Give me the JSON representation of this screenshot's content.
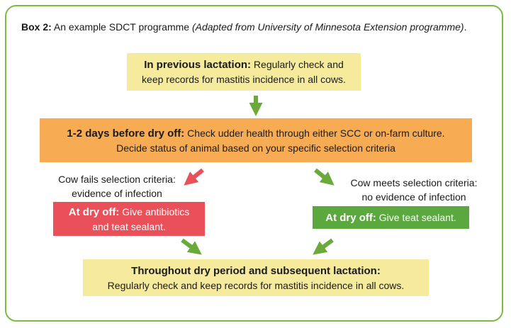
{
  "caption": {
    "label": "Box 2:",
    "text": " An example SDCT programme ",
    "source": "(Adapted from University of  Minnesota Extension programme)",
    "end": "."
  },
  "boxes": {
    "previous": {
      "title": "In previous lactation:",
      "text1": " Regularly check and",
      "text2": "keep records for mastitis incidence in all cows."
    },
    "before_dry_off": {
      "title": "1-2 days before dry off:",
      "text1": " Check udder health through either SCC or on-farm culture.",
      "text2": "Decide status of animal based on your specific selection criteria"
    },
    "fails_label": {
      "line1": "Cow fails selection criteria:",
      "line2": "evidence of infection"
    },
    "meets_label": {
      "line1": "Cow meets selection criteria:",
      "line2": "no evidence of infection"
    },
    "dry_off_fail": {
      "title": "At dry off:",
      "text1": " Give antibiotics",
      "text2": "and teat sealant."
    },
    "dry_off_meet": {
      "title": "At dry off:",
      "text1": " Give teat sealant."
    },
    "throughout": {
      "title": "Throughout dry period and subsequent lactation:",
      "text1": "Regularly check and keep records for mastitis incidence in all cows."
    }
  },
  "colors": {
    "frame": "#7dbb3f",
    "yellow": "#f6eb9c",
    "orange": "#f7ac53",
    "red": "#e9505a",
    "green": "#5aa83e",
    "arrow_green": "#6aaa3a",
    "arrow_red": "#e9505a"
  }
}
